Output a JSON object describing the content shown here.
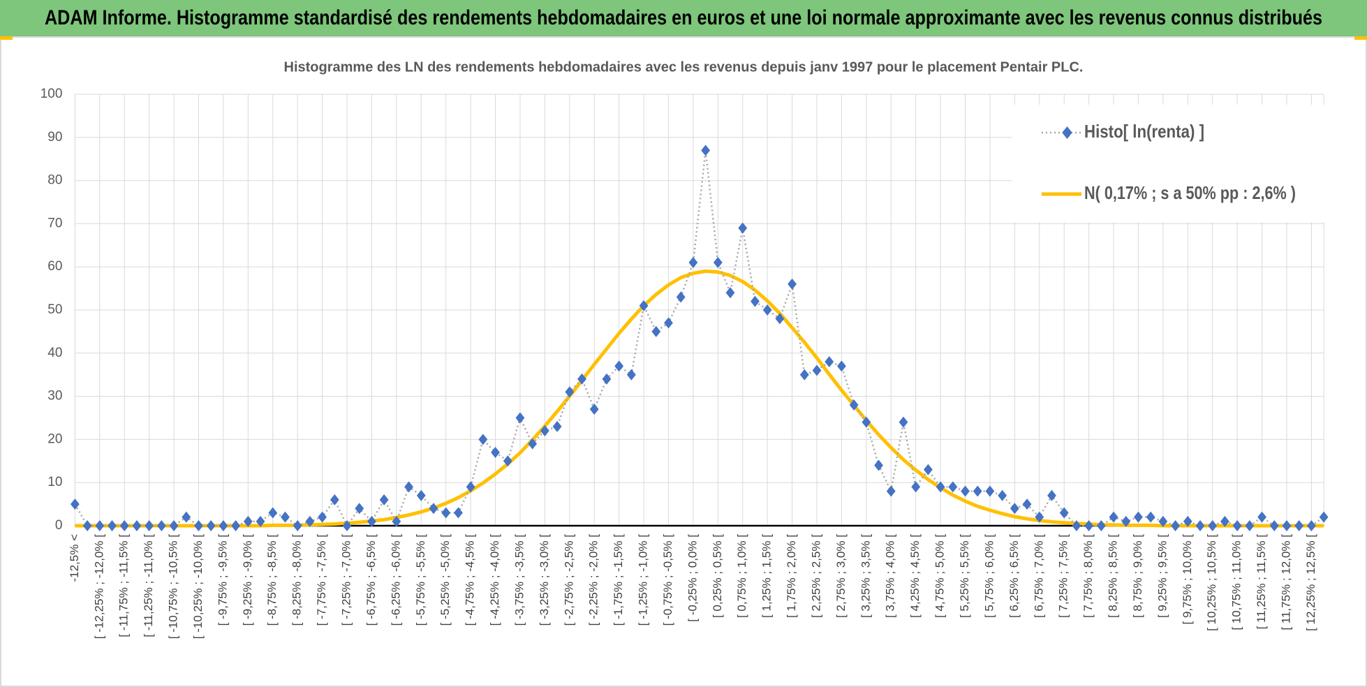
{
  "header": {
    "title": "ADAM Informe. Histogramme standardisé des rendements hebdomadaires en euros et une loi normale approximante avec les revenus connus distribués"
  },
  "chart_data": {
    "type": "line",
    "title": "Histogramme des LN des rendements hebdomadaires avec les revenus depuis janv 1997 pour le placement Pentair PLC.",
    "categories": [
      "-12,5% <",
      null,
      "[ -12,25% ; -12,0% [",
      null,
      "[ -11,75% ; -11,5% [",
      null,
      "[ -11,25% ; -11,0% [",
      null,
      "[ -10,75% ; -10,5% [",
      null,
      "[ -10,25% ; -10,0% [",
      null,
      "[ -9,75% ; -9,5% [",
      null,
      "[ -9,25% ; -9,0% [",
      null,
      "[ -8,75% ; -8,5% [",
      null,
      "[ -8,25% ; -8,0% [",
      null,
      "[ -7,75% ; -7,5% [",
      null,
      "[ -7,25% ; -7,0% [",
      null,
      "[ -6,75% ; -6,5% [",
      null,
      "[ -6,25% ; -6,0% [",
      null,
      "[ -5,75% ; -5,5% [",
      null,
      "[ -5,25% ; -5,0% [",
      null,
      "[ -4,75% ; -4,5% [",
      null,
      "[ -4,25% ; -4,0% [",
      null,
      "[ -3,75% ; -3,5% [",
      null,
      "[ -3,25% ; -3,0% [",
      null,
      "[ -2,75% ; -2,5% [",
      null,
      "[ -2,25% ; -2,0% [",
      null,
      "[ -1,75% ; -1,5% [",
      null,
      "[ -1,25% ; -1,0% [",
      null,
      "[ -0,75% ; -0,5% [",
      null,
      "[ -0,25% ; 0,0% [",
      null,
      "[ 0,25% ; 0,5% [",
      null,
      "[ 0,75% ; 1,0% [",
      null,
      "[ 1,25% ; 1,5% [",
      null,
      "[ 1,75% ; 2,0% [",
      null,
      "[ 2,25% ; 2,5% [",
      null,
      "[ 2,75% ; 3,0% [",
      null,
      "[ 3,25% ; 3,5% [",
      null,
      "[ 3,75% ; 4,0% [",
      null,
      "[ 4,25% ; 4,5% [",
      null,
      "[ 4,75% ; 5,0% [",
      null,
      "[ 5,25% ; 5,5% [",
      null,
      "[ 5,75% ; 6,0% [",
      null,
      "[ 6,25% ; 6,5% [",
      null,
      "[ 6,75% ; 7,0% [",
      null,
      "[ 7,25% ; 7,5% [",
      null,
      "[ 7,75% ; 8,0% [",
      null,
      "[ 8,25% ; 8,5% [",
      null,
      "[ 8,75% ; 9,0% [",
      null,
      "[ 9,25% ; 9,5% [",
      null,
      "[ 9,75% ; 10,0% [",
      null,
      "[ 10,25% ; 10,5% [",
      null,
      "[ 10,75% ; 11,0% [",
      null,
      "[ 11,25% ; 11,5% [",
      null,
      "[ 11,75% ; 12,0% [",
      null,
      "[ 12,25% ; 12,5% [",
      null
    ],
    "series": [
      {
        "name": "Histo[ ln(renta) ]",
        "color": "#4472c4",
        "line_color": "#a5a5a5",
        "line_style": "dotted",
        "marker": "diamond",
        "values": [
          5,
          0,
          0,
          0,
          0,
          0,
          0,
          0,
          0,
          2,
          0,
          0,
          0,
          0,
          1,
          1,
          3,
          2,
          0,
          1,
          2,
          6,
          0,
          4,
          1,
          6,
          1,
          9,
          7,
          4,
          3,
          3,
          9,
          20,
          17,
          15,
          25,
          19,
          22,
          23,
          31,
          34,
          27,
          34,
          37,
          35,
          51,
          45,
          47,
          53,
          61,
          87,
          61,
          54,
          69,
          52,
          50,
          48,
          56,
          35,
          36,
          38,
          37,
          28,
          24,
          14,
          8,
          24,
          9,
          13,
          9,
          9,
          8,
          8,
          8,
          7,
          4,
          5,
          2,
          7,
          3,
          0,
          0,
          0,
          2,
          1,
          2,
          2,
          1,
          0,
          1,
          0,
          0,
          1,
          0,
          0,
          2,
          0,
          0,
          0,
          0,
          2
        ]
      },
      {
        "name": "N( 0,17% ; s a 50% pp : 2,6% )",
        "color": "#ffc000",
        "line_style": "solid",
        "marker": "none",
        "values": [
          0,
          0,
          0,
          0,
          0,
          0,
          0,
          0,
          0,
          0,
          0,
          0,
          0,
          0,
          0,
          0,
          0.1,
          0.1,
          0.1,
          0.2,
          0.3,
          0.4,
          0.6,
          0.8,
          1.1,
          1.4,
          1.9,
          2.5,
          3.2,
          4.1,
          5.2,
          6.5,
          8.1,
          9.9,
          12.0,
          14.3,
          16.9,
          19.9,
          23.1,
          26.5,
          30.0,
          33.7,
          37.4,
          41.0,
          44.6,
          47.9,
          51.0,
          53.6,
          55.8,
          57.5,
          58.5,
          59.0,
          58.8,
          58.0,
          56.6,
          54.6,
          52.1,
          49.2,
          45.9,
          42.5,
          38.9,
          35.1,
          31.4,
          27.9,
          24.4,
          21.1,
          18.1,
          15.3,
          12.9,
          10.7,
          8.8,
          7.1,
          5.7,
          4.5,
          3.6,
          2.8,
          2.1,
          1.6,
          1.2,
          0.9,
          0.7,
          0.5,
          0.4,
          0.2,
          0.2,
          0.1,
          0.1,
          0.1,
          0,
          0,
          0,
          0,
          0,
          0,
          0,
          0,
          0,
          0,
          0,
          0,
          0,
          0
        ]
      }
    ],
    "ylim": [
      0,
      100
    ],
    "yticks": [
      0,
      10,
      20,
      30,
      40,
      50,
      60,
      70,
      80,
      90,
      100
    ],
    "grid": true,
    "legend": "upper right"
  }
}
